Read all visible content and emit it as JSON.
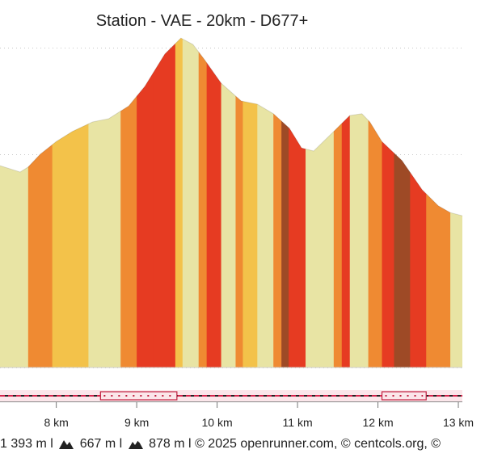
{
  "chart_data": {
    "type": "area",
    "title": "Station - VAE - 20km - D677+",
    "xlabel": "",
    "ylabel": "",
    "xlim": [
      7.3,
      13.05
    ],
    "ylim": [
      0,
      100
    ],
    "grid": true,
    "x_ticks": [
      {
        "value": 8,
        "label": "8 km"
      },
      {
        "value": 9,
        "label": "9 km"
      },
      {
        "value": 10,
        "label": "10 km"
      },
      {
        "value": 11,
        "label": "11 km"
      },
      {
        "value": 12,
        "label": "12 km"
      },
      {
        "value": 13,
        "label": "13 km"
      }
    ],
    "series": [
      {
        "x": [
          7.3,
          7.55,
          7.65,
          7.8,
          8.0,
          8.2,
          8.45,
          8.65,
          8.9,
          9.1,
          9.35,
          9.55,
          9.7,
          9.85,
          10.05,
          10.3,
          10.5,
          10.7,
          10.9,
          11.05,
          11.2,
          11.45,
          11.65,
          11.8,
          11.9,
          12.05,
          12.3,
          12.55,
          12.75,
          12.9,
          13.05
        ],
        "y": [
          56.8,
          55.0,
          56.4,
          60.0,
          63.6,
          66.4,
          69.1,
          70.0,
          73.6,
          79.1,
          88.2,
          92.7,
          90.9,
          86.4,
          80.0,
          75.0,
          74.1,
          71.4,
          67.3,
          61.8,
          60.9,
          66.4,
          70.9,
          71.4,
          69.1,
          63.6,
          58.2,
          50.0,
          45.5,
          43.6,
          42.7
        ]
      }
    ],
    "slope_bands": [
      {
        "x0": 7.3,
        "x1": 7.65,
        "color": "#e8e4a4"
      },
      {
        "x0": 7.65,
        "x1": 7.95,
        "color": "#ef8a32"
      },
      {
        "x0": 7.95,
        "x1": 8.4,
        "color": "#f3c24a"
      },
      {
        "x0": 8.4,
        "x1": 8.8,
        "color": "#e8e4a4"
      },
      {
        "x0": 8.8,
        "x1": 9.0,
        "color": "#ef8a32"
      },
      {
        "x0": 9.0,
        "x1": 9.2,
        "color": "#e63b22"
      },
      {
        "x0": 9.2,
        "x1": 9.48,
        "color": "#e63b22"
      },
      {
        "x0": 9.48,
        "x1": 9.57,
        "color": "#f3c24a"
      },
      {
        "x0": 9.57,
        "x1": 9.77,
        "color": "#e8e4a4"
      },
      {
        "x0": 9.77,
        "x1": 9.87,
        "color": "#ef8a32"
      },
      {
        "x0": 9.87,
        "x1": 10.05,
        "color": "#e63b22"
      },
      {
        "x0": 10.05,
        "x1": 10.23,
        "color": "#e8e4a4"
      },
      {
        "x0": 10.23,
        "x1": 10.32,
        "color": "#ef8a32"
      },
      {
        "x0": 10.32,
        "x1": 10.5,
        "color": "#f3c24a"
      },
      {
        "x0": 10.5,
        "x1": 10.7,
        "color": "#e8e4a4"
      },
      {
        "x0": 10.7,
        "x1": 10.8,
        "color": "#ef8a32"
      },
      {
        "x0": 10.8,
        "x1": 10.89,
        "color": "#9e4a26"
      },
      {
        "x0": 10.89,
        "x1": 11.1,
        "color": "#e63b22"
      },
      {
        "x0": 11.1,
        "x1": 11.45,
        "color": "#e8e4a4"
      },
      {
        "x0": 11.45,
        "x1": 11.55,
        "color": "#ef8a32"
      },
      {
        "x0": 11.55,
        "x1": 11.65,
        "color": "#e63b22"
      },
      {
        "x0": 11.65,
        "x1": 11.88,
        "color": "#e8e4a4"
      },
      {
        "x0": 11.88,
        "x1": 12.05,
        "color": "#ef8a32"
      },
      {
        "x0": 12.05,
        "x1": 12.2,
        "color": "#e63b22"
      },
      {
        "x0": 12.2,
        "x1": 12.4,
        "color": "#9e4a26"
      },
      {
        "x0": 12.4,
        "x1": 12.6,
        "color": "#e63b22"
      },
      {
        "x0": 12.6,
        "x1": 12.9,
        "color": "#ef8a32"
      },
      {
        "x0": 12.9,
        "x1": 13.05,
        "color": "#e8e4a4"
      }
    ],
    "highlight_ranges": [
      [
        8.55,
        9.5
      ],
      [
        12.05,
        12.6
      ]
    ]
  },
  "footer": {
    "distance": "1 393 m",
    "sep1": "l",
    "ascent": "667 m",
    "sep2": "l",
    "descent": "878 m",
    "sep3": "l",
    "credits": "© 2025 openrunner.com, © centcols.org, ©"
  }
}
